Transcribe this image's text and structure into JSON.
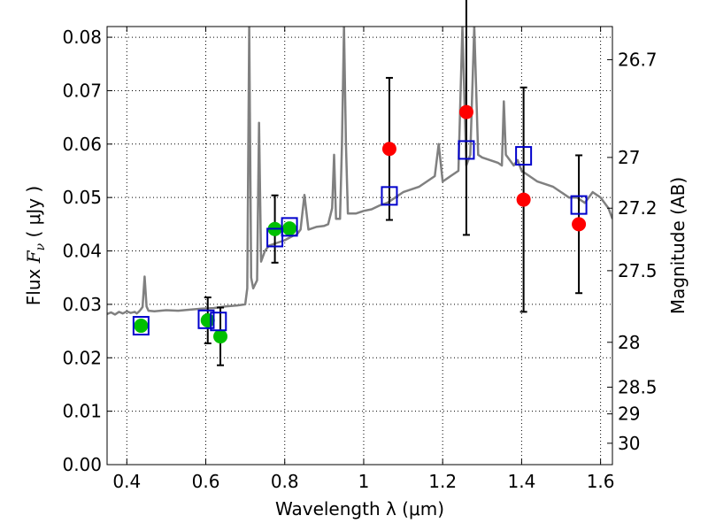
{
  "chart_data": {
    "type": "scatter",
    "xlabel": "Wavelength  λ (μm)",
    "ylabel_parts": [
      "Flux  ",
      "F",
      "ν",
      "  ( μJy )"
    ],
    "y2label": "Magnitude (AB)",
    "xlim": [
      0.35,
      1.63
    ],
    "ylim": [
      0.0,
      0.082
    ],
    "grid": true,
    "x_ticks": [
      0.4,
      0.6,
      0.8,
      1.0,
      1.2,
      1.4,
      1.6
    ],
    "x_tick_labels": [
      "0.4",
      "0.6",
      "0.8",
      "1",
      "1.2",
      "1.4",
      "1.6"
    ],
    "y_ticks": [
      0.0,
      0.01,
      0.02,
      0.03,
      0.04,
      0.05,
      0.06,
      0.07,
      0.08
    ],
    "y_tick_labels": [
      "0.00",
      "0.01",
      "0.02",
      "0.03",
      "0.04",
      "0.05",
      "0.06",
      "0.07",
      "0.08"
    ],
    "mag_ticks": [
      {
        "flux": 0.0758,
        "label": "26.7"
      },
      {
        "flux": 0.0575,
        "label": "27"
      },
      {
        "flux": 0.048,
        "label": "27.2"
      },
      {
        "flux": 0.0363,
        "label": "27.5"
      },
      {
        "flux": 0.0229,
        "label": "28"
      },
      {
        "flux": 0.0145,
        "label": "28.5"
      },
      {
        "flux": 0.0095,
        "label": "29"
      },
      {
        "flux": 0.004,
        "label": "30"
      }
    ],
    "spectrum": {
      "color": "#808080",
      "points": [
        [
          0.35,
          0.0282
        ],
        [
          0.36,
          0.0285
        ],
        [
          0.37,
          0.0281
        ],
        [
          0.38,
          0.0286
        ],
        [
          0.39,
          0.0283
        ],
        [
          0.4,
          0.0287
        ],
        [
          0.41,
          0.0284
        ],
        [
          0.42,
          0.0286
        ],
        [
          0.425,
          0.0283
        ],
        [
          0.43,
          0.0286
        ],
        [
          0.435,
          0.029
        ],
        [
          0.44,
          0.0295
        ],
        [
          0.445,
          0.0352
        ],
        [
          0.45,
          0.0296
        ],
        [
          0.455,
          0.0288
        ],
        [
          0.47,
          0.0287
        ],
        [
          0.5,
          0.0289
        ],
        [
          0.53,
          0.0288
        ],
        [
          0.56,
          0.029
        ],
        [
          0.59,
          0.0292
        ],
        [
          0.62,
          0.0293
        ],
        [
          0.65,
          0.0296
        ],
        [
          0.68,
          0.0298
        ],
        [
          0.7,
          0.03
        ],
        [
          0.705,
          0.033
        ],
        [
          0.71,
          0.082
        ],
        [
          0.715,
          0.035
        ],
        [
          0.72,
          0.033
        ],
        [
          0.73,
          0.0345
        ],
        [
          0.735,
          0.064
        ],
        [
          0.74,
          0.038
        ],
        [
          0.75,
          0.04
        ],
        [
          0.76,
          0.041
        ],
        [
          0.78,
          0.0415
        ],
        [
          0.8,
          0.042
        ],
        [
          0.82,
          0.0428
        ],
        [
          0.83,
          0.043
        ],
        [
          0.84,
          0.044
        ],
        [
          0.85,
          0.0505
        ],
        [
          0.86,
          0.044
        ],
        [
          0.88,
          0.0445
        ],
        [
          0.9,
          0.0447
        ],
        [
          0.91,
          0.045
        ],
        [
          0.92,
          0.048
        ],
        [
          0.925,
          0.058
        ],
        [
          0.93,
          0.046
        ],
        [
          0.94,
          0.046
        ],
        [
          0.945,
          0.06
        ],
        [
          0.95,
          0.082
        ],
        [
          0.955,
          0.06
        ],
        [
          0.96,
          0.047
        ],
        [
          0.98,
          0.047
        ],
        [
          1.0,
          0.0475
        ],
        [
          1.02,
          0.0478
        ],
        [
          1.04,
          0.0485
        ],
        [
          1.06,
          0.049
        ],
        [
          1.08,
          0.05
        ],
        [
          1.1,
          0.051
        ],
        [
          1.12,
          0.0515
        ],
        [
          1.14,
          0.052
        ],
        [
          1.16,
          0.053
        ],
        [
          1.18,
          0.054
        ],
        [
          1.19,
          0.06
        ],
        [
          1.2,
          0.053
        ],
        [
          1.22,
          0.054
        ],
        [
          1.24,
          0.055
        ],
        [
          1.25,
          0.082
        ],
        [
          1.26,
          0.056
        ],
        [
          1.27,
          0.058
        ],
        [
          1.28,
          0.082
        ],
        [
          1.29,
          0.058
        ],
        [
          1.3,
          0.0575
        ],
        [
          1.32,
          0.057
        ],
        [
          1.34,
          0.0565
        ],
        [
          1.35,
          0.056
        ],
        [
          1.355,
          0.068
        ],
        [
          1.36,
          0.058
        ],
        [
          1.38,
          0.056
        ],
        [
          1.39,
          0.057
        ],
        [
          1.4,
          0.055
        ],
        [
          1.42,
          0.054
        ],
        [
          1.44,
          0.053
        ],
        [
          1.46,
          0.0525
        ],
        [
          1.48,
          0.052
        ],
        [
          1.5,
          0.051
        ],
        [
          1.52,
          0.05
        ],
        [
          1.54,
          0.05
        ],
        [
          1.56,
          0.049
        ],
        [
          1.58,
          0.051
        ],
        [
          1.6,
          0.05
        ],
        [
          1.62,
          0.048
        ],
        [
          1.63,
          0.046
        ]
      ]
    },
    "series": [
      {
        "marker": "open-square",
        "color": "#0000cc",
        "points": [
          {
            "x": 0.436,
            "y": 0.026
          },
          {
            "x": 0.601,
            "y": 0.0272
          },
          {
            "x": 0.632,
            "y": 0.0268
          },
          {
            "x": 0.775,
            "y": 0.0425
          },
          {
            "x": 0.812,
            "y": 0.0445
          },
          {
            "x": 1.065,
            "y": 0.0503
          },
          {
            "x": 1.26,
            "y": 0.0589
          },
          {
            "x": 1.405,
            "y": 0.0578
          },
          {
            "x": 1.545,
            "y": 0.0486
          }
        ]
      },
      {
        "marker": "filled-circle",
        "color": "#00c000",
        "points": [
          {
            "x": 0.436,
            "y": 0.026
          },
          {
            "x": 0.605,
            "y": 0.027,
            "err": 0.0043
          },
          {
            "x": 0.637,
            "y": 0.024,
            "err": 0.0054
          },
          {
            "x": 0.775,
            "y": 0.0441,
            "err": 0.0063
          },
          {
            "x": 0.812,
            "y": 0.0442
          }
        ]
      },
      {
        "marker": "filled-circle",
        "color": "#ff0000",
        "points": [
          {
            "x": 1.065,
            "y": 0.0591,
            "err": 0.0133
          },
          {
            "x": 1.26,
            "y": 0.066,
            "err": 0.023
          },
          {
            "x": 1.405,
            "y": 0.0496,
            "err": 0.021
          },
          {
            "x": 1.545,
            "y": 0.045,
            "err": 0.0129
          }
        ]
      }
    ]
  }
}
